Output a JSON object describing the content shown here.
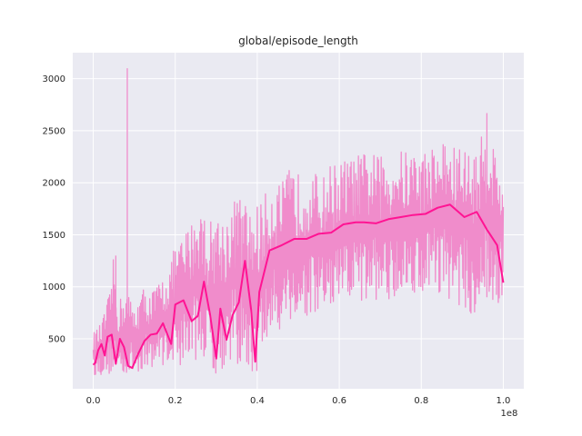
{
  "chart_data": {
    "type": "line",
    "title": "global/episode_length",
    "xlabel": "",
    "ylabel": "",
    "x_offset_label": "1e8",
    "xlim": [
      -0.05,
      1.05
    ],
    "ylim": [
      20,
      3250
    ],
    "xticks": [
      0.0,
      0.2,
      0.4,
      0.6,
      0.8,
      1.0
    ],
    "xtick_labels": [
      "0.0",
      "0.2",
      "0.4",
      "0.6",
      "0.8",
      "1.0"
    ],
    "yticks": [
      500,
      1000,
      1500,
      2000,
      2500,
      3000
    ],
    "ytick_labels": [
      "500",
      "1000",
      "1500",
      "2000",
      "2500",
      "3000"
    ],
    "grid": true,
    "background": "#eaeaf2",
    "series": [
      {
        "style": "raw-envelope",
        "color": "#f08ccb",
        "x": [
          0.0,
          0.02,
          0.04,
          0.05,
          0.06,
          0.08,
          0.1,
          0.12,
          0.14,
          0.16,
          0.18,
          0.2,
          0.22,
          0.24,
          0.26,
          0.28,
          0.3,
          0.32,
          0.34,
          0.36,
          0.38,
          0.4,
          0.42,
          0.44,
          0.46,
          0.48,
          0.5,
          0.52,
          0.54,
          0.56,
          0.58,
          0.6,
          0.62,
          0.64,
          0.66,
          0.68,
          0.7,
          0.72,
          0.74,
          0.76,
          0.78,
          0.8,
          0.82,
          0.84,
          0.86,
          0.88,
          0.9,
          0.92,
          0.94,
          0.96,
          0.98,
          1.0
        ],
        "upper": [
          560,
          650,
          950,
          1300,
          850,
          1000,
          800,
          1000,
          950,
          1050,
          1150,
          1400,
          1500,
          1650,
          1850,
          1600,
          1750,
          1650,
          1850,
          1900,
          1750,
          1800,
          1900,
          2050,
          2000,
          2150,
          2100,
          2150,
          2100,
          2050,
          2200,
          2200,
          2250,
          2250,
          2300,
          2300,
          2250,
          2300,
          2350,
          2300,
          2350,
          2300,
          2350,
          2400,
          2450,
          2350,
          2400,
          2300,
          2350,
          2650,
          2350,
          2100
        ],
        "lower": [
          150,
          150,
          150,
          150,
          150,
          150,
          150,
          200,
          220,
          250,
          250,
          250,
          230,
          300,
          300,
          250,
          150,
          200,
          300,
          200,
          150,
          150,
          400,
          500,
          600,
          650,
          600,
          700,
          650,
          750,
          700,
          800,
          800,
          850,
          800,
          850,
          900,
          800,
          950,
          900,
          950,
          900,
          1000,
          950,
          900,
          850,
          800,
          700,
          750,
          800,
          750,
          900
        ],
        "spikes": [
          {
            "x": 0.083,
            "y": 3100
          },
          {
            "x": 0.055,
            "y": 1300
          },
          {
            "x": 0.96,
            "y": 2670
          }
        ]
      },
      {
        "style": "smoothed",
        "color": "#ff1493",
        "x": [
          0.0,
          0.005,
          0.012,
          0.02,
          0.028,
          0.035,
          0.045,
          0.055,
          0.065,
          0.075,
          0.085,
          0.095,
          0.11,
          0.125,
          0.14,
          0.155,
          0.17,
          0.19,
          0.2,
          0.22,
          0.24,
          0.255,
          0.27,
          0.285,
          0.3,
          0.31,
          0.325,
          0.34,
          0.355,
          0.37,
          0.385,
          0.395,
          0.405,
          0.43,
          0.46,
          0.49,
          0.52,
          0.55,
          0.58,
          0.61,
          0.64,
          0.66,
          0.69,
          0.72,
          0.75,
          0.78,
          0.81,
          0.84,
          0.87,
          0.905,
          0.935,
          0.96,
          0.985,
          1.0
        ],
        "y": [
          250,
          270,
          390,
          450,
          340,
          520,
          540,
          260,
          500,
          420,
          240,
          220,
          360,
          480,
          540,
          550,
          650,
          450,
          830,
          870,
          670,
          720,
          1050,
          730,
          310,
          790,
          490,
          730,
          850,
          1250,
          780,
          280,
          950,
          1350,
          1400,
          1460,
          1460,
          1510,
          1520,
          1600,
          1620,
          1620,
          1610,
          1650,
          1670,
          1690,
          1700,
          1760,
          1790,
          1670,
          1720,
          1550,
          1400,
          1040
        ]
      }
    ]
  }
}
